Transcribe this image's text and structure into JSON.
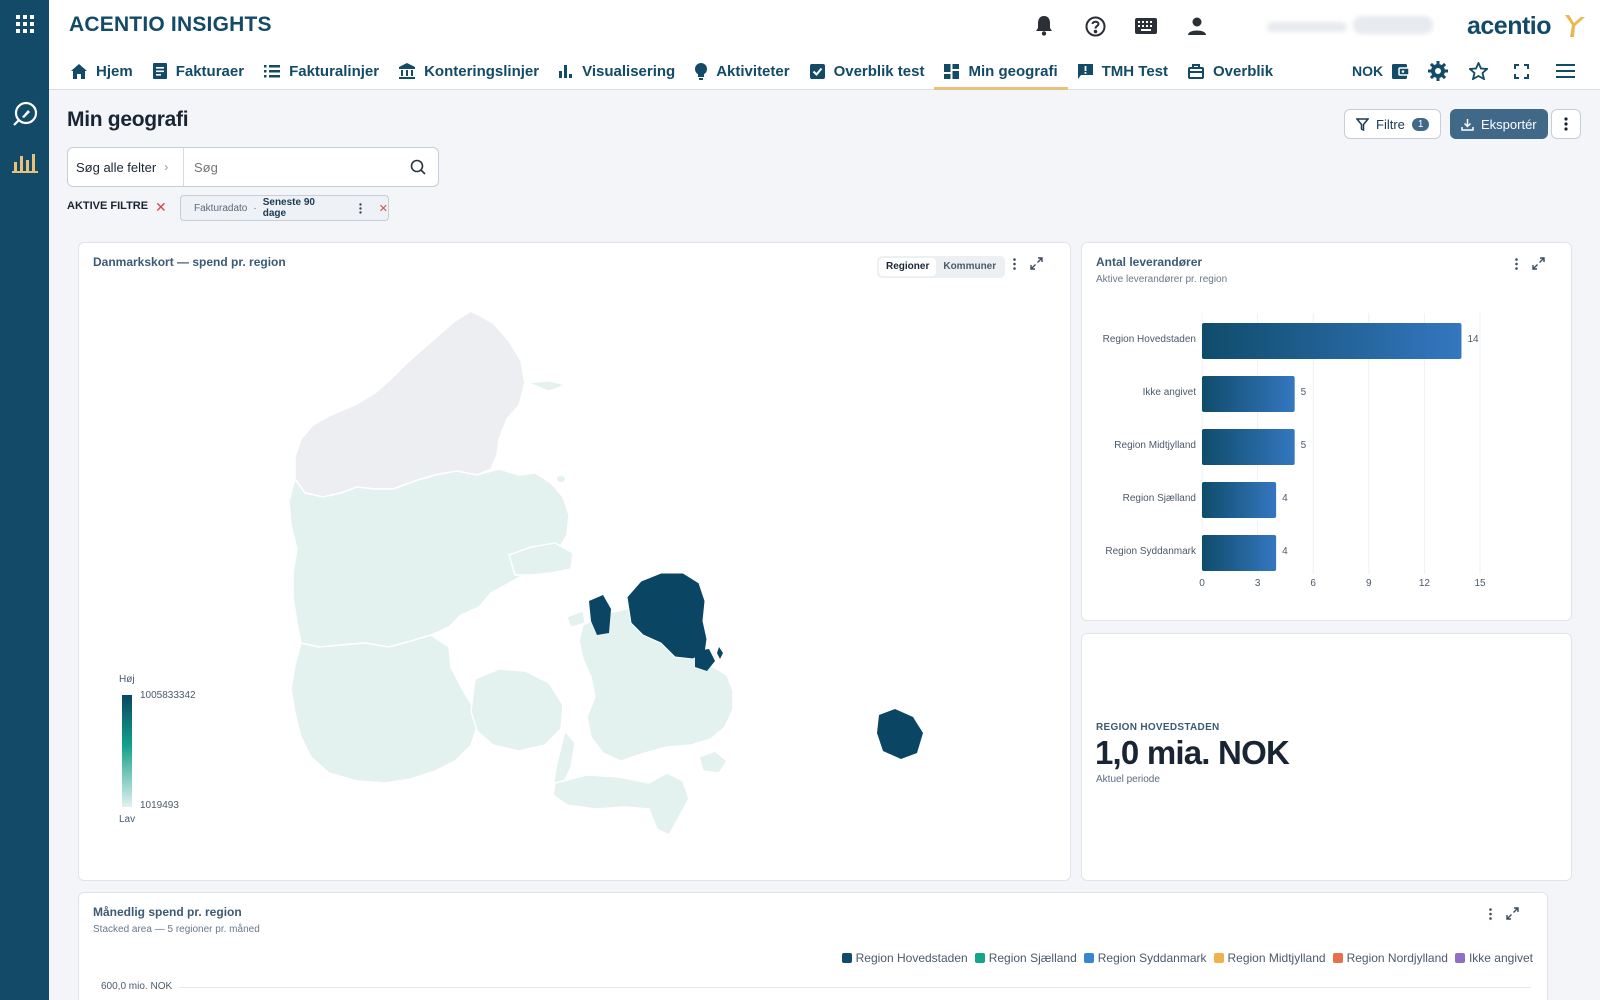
{
  "header": {
    "app_title": "ACENTIO INSIGHTS",
    "logo_text": "acentio",
    "currency": "NOK",
    "icons": [
      "bell-icon",
      "help-icon",
      "keyboard-icon",
      "user-icon"
    ]
  },
  "nav": {
    "items": [
      {
        "label": "Hjem",
        "icon": "home-icon"
      },
      {
        "label": "Fakturaer",
        "icon": "receipt-icon"
      },
      {
        "label": "Fakturalinjer",
        "icon": "list-icon"
      },
      {
        "label": "Konteringslinjer",
        "icon": "bank-icon"
      },
      {
        "label": "Visualisering",
        "icon": "bar-chart-icon"
      },
      {
        "label": "Aktiviteter",
        "icon": "lightbulb-icon"
      },
      {
        "label": "Overblik test",
        "icon": "check-box-icon"
      },
      {
        "label": "Min geografi",
        "icon": "dashboard-icon",
        "active": true
      },
      {
        "label": "TMH Test",
        "icon": "feedback-icon"
      },
      {
        "label": "Overblik",
        "icon": "briefcase-icon"
      }
    ]
  },
  "page": {
    "title": "Min geografi",
    "filter_label": "Filtre",
    "filter_count": "1",
    "export_label": "Eksportér"
  },
  "search": {
    "scope": "Søg alle felter",
    "placeholder": "Søg"
  },
  "active_filters": {
    "label": "AKTIVE FILTRE",
    "chip_field": "Fakturadato",
    "chip_sep": "·",
    "chip_value": "Seneste 90 dage"
  },
  "map_card": {
    "title": "Danmarkskort — spend pr. region",
    "toggle": [
      "Regioner",
      "Kommuner"
    ],
    "toggle_active": "Regioner",
    "legend_high_label": "Høj",
    "legend_high_value": "1005833342",
    "legend_low_value": "1019493",
    "legend_low_label": "Lav",
    "colors": {
      "high": "#0a4663",
      "low": "#e3f1ef",
      "mid": "#13a18b",
      "none": "#eceef1"
    }
  },
  "suppliers_card": {
    "title": "Antal leverandører",
    "subtitle": "Aktive leverandører pr. region",
    "chart_data": {
      "type": "bar",
      "orientation": "horizontal",
      "categories": [
        "Region Hovedstaden",
        "Ikke angivet",
        "Region Midtjylland",
        "Region Sjælland",
        "Region Syddanmark"
      ],
      "values": [
        14,
        5,
        5,
        4,
        4
      ],
      "xlim": [
        0,
        15
      ],
      "xticks": [
        0,
        3,
        6,
        9,
        12,
        15
      ],
      "colors": [
        "#0f4c6b",
        "#3477c0"
      ]
    }
  },
  "kpi_card": {
    "label": "REGION HOVEDSTADEN",
    "value": "1,0 mia. NOK",
    "sub": "Aktuel periode"
  },
  "monthly_card": {
    "title": "Månedlig spend pr. region",
    "subtitle": "Stacked area — 5 regioner pr. måned",
    "y_top_label": "600,0 mio. NOK",
    "legend": [
      {
        "name": "Region Hovedstaden",
        "color": "#0f4c6b"
      },
      {
        "name": "Region Sjælland",
        "color": "#14a58a"
      },
      {
        "name": "Region Syddanmark",
        "color": "#3a85cf"
      },
      {
        "name": "Region Midtjylland",
        "color": "#f0b24f"
      },
      {
        "name": "Region Nordjylland",
        "color": "#e5704b"
      },
      {
        "name": "Ikke angivet",
        "color": "#8f6fc4"
      }
    ]
  }
}
